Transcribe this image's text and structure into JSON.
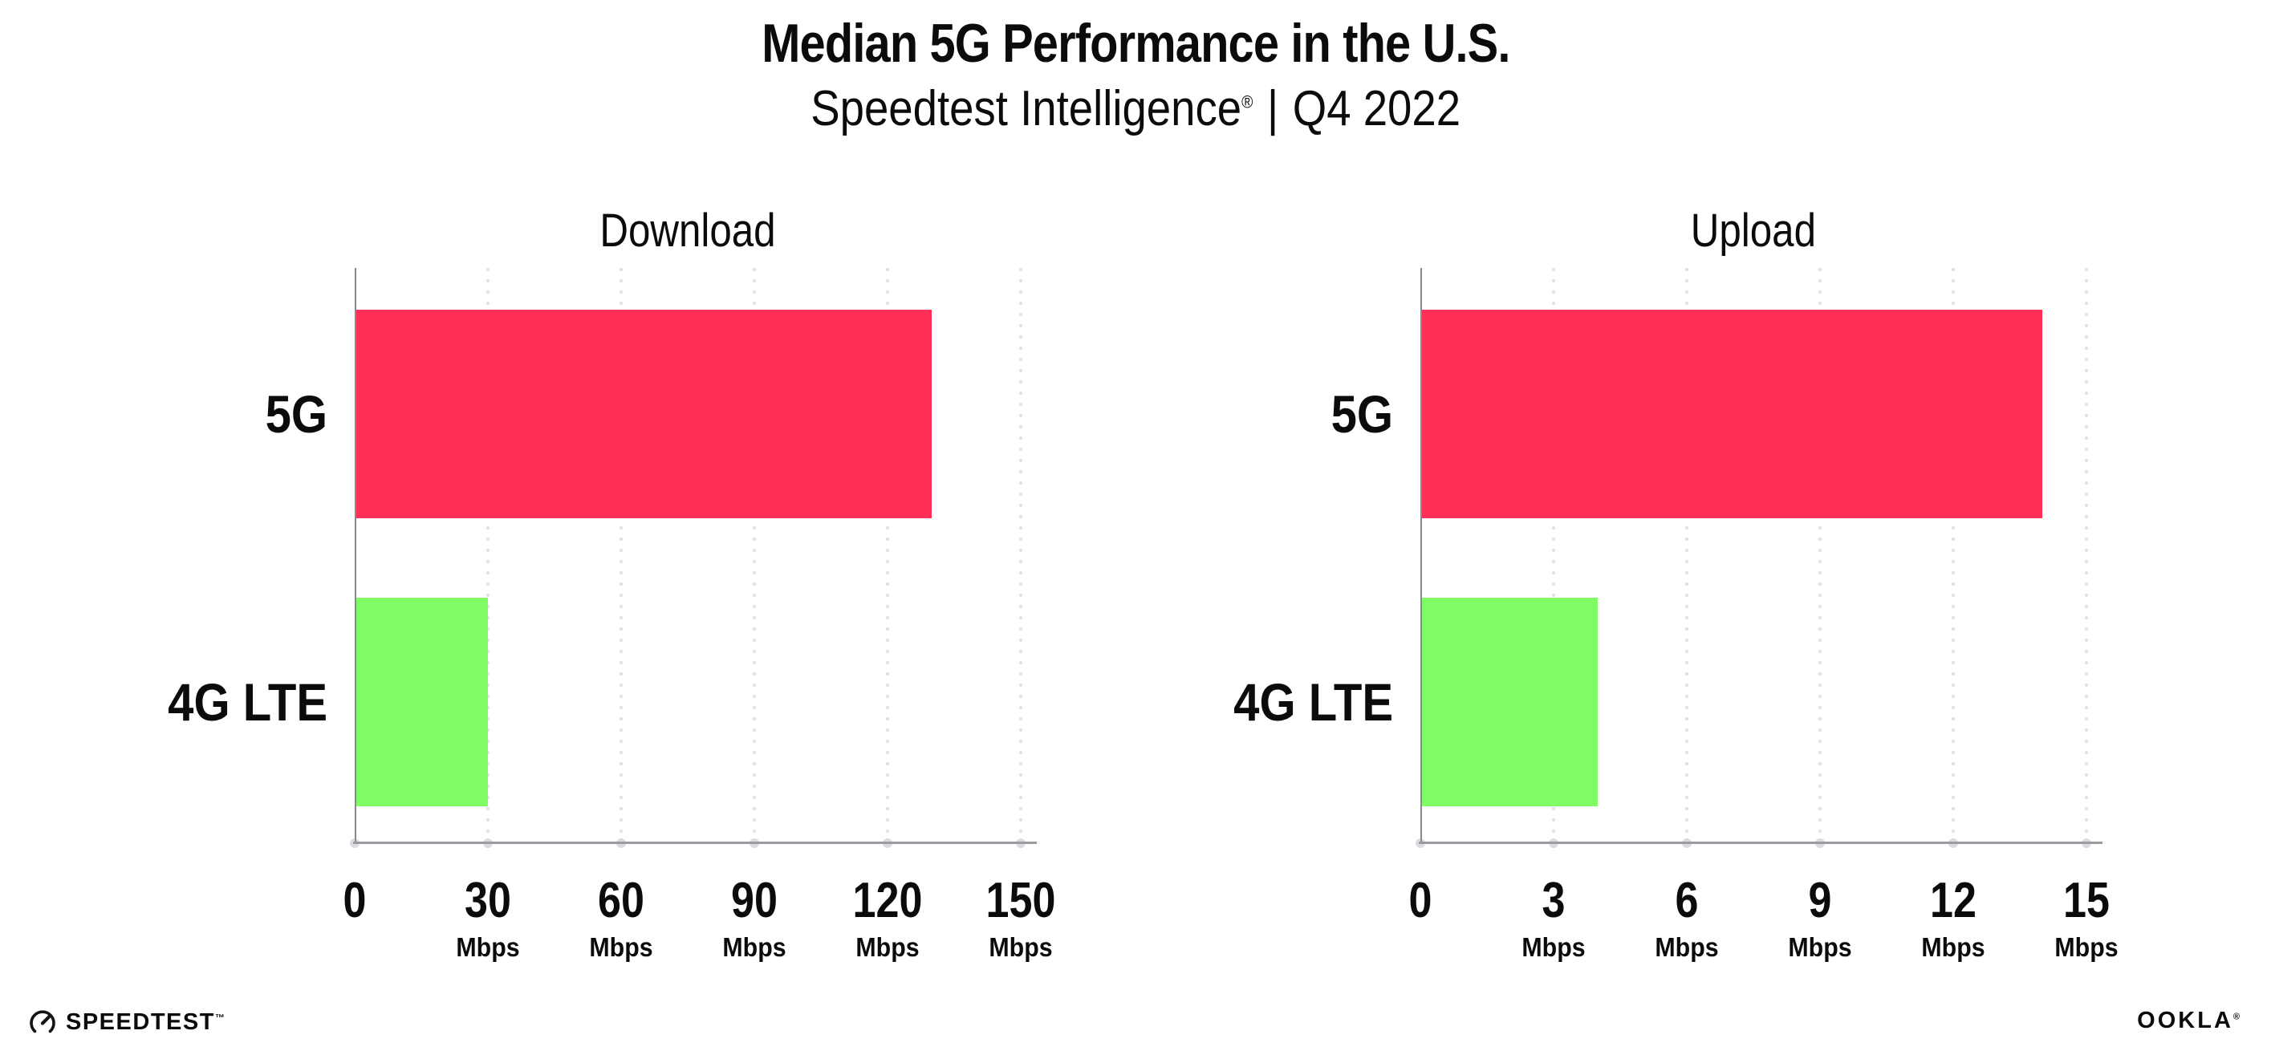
{
  "header": {
    "title": "Median 5G Performance in the U.S.",
    "subtitle": {
      "brand": "Speedtest Intelligence",
      "reg_mark": "®",
      "separator": "|",
      "period": "Q4 2022"
    }
  },
  "colors": {
    "bar_5g": "#FF2F57",
    "bar_4g_lte": "#80FC66",
    "gridline": "#E4E4EE",
    "axis": "#9B9BA1",
    "text": "#0B0B0C"
  },
  "chart_data": [
    {
      "type": "bar",
      "orientation": "horizontal",
      "title": "Download",
      "categories": [
        "5G",
        "4G LTE"
      ],
      "values": [
        130,
        30
      ],
      "unit": "Mbps",
      "xlabel": "",
      "ylabel": "",
      "xlim": [
        0,
        150
      ],
      "xticks": [
        0,
        30,
        60,
        90,
        120,
        150
      ],
      "bar_colors": [
        "#FF2F57",
        "#80FC66"
      ],
      "grid": "dotted-vertical",
      "legend": "none"
    },
    {
      "type": "bar",
      "orientation": "horizontal",
      "title": "Upload",
      "categories": [
        "5G",
        "4G LTE"
      ],
      "values": [
        14,
        4
      ],
      "unit": "Mbps",
      "xlabel": "",
      "ylabel": "",
      "xlim": [
        0,
        15
      ],
      "xticks": [
        0,
        3,
        6,
        9,
        12,
        15
      ],
      "bar_colors": [
        "#FF2F57",
        "#80FC66"
      ],
      "grid": "dotted-vertical",
      "legend": "none"
    }
  ],
  "footer": {
    "speedtest": {
      "label": "SPEEDTEST",
      "mark": "™",
      "icon": "gauge-icon"
    },
    "ookla": {
      "label": "OOKLA",
      "mark": "®"
    }
  }
}
